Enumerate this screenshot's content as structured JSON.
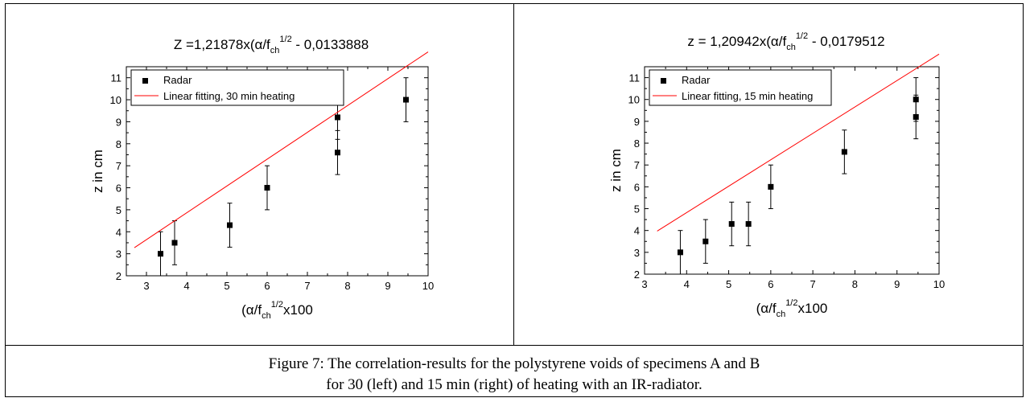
{
  "caption": {
    "line1": "Figure 7: The correlation-results for the polystyrene voids of specimens A and B",
    "line2": "for 30 (left) and 15 min (right) of heating with an IR-radiator."
  },
  "chart_data": [
    {
      "type": "scatter",
      "title_main": "Z =1,21878x(α/f",
      "title_sub": "ch",
      "title_sup": "1/2",
      "title_rest": " - 0,0133888",
      "xlabel_main": "(α/f",
      "xlabel_sub": "ch",
      "xlabel_sup": "1/2",
      "xlabel_rest": "x100",
      "ylabel": "z in cm",
      "xlim": [
        2.5,
        10
      ],
      "ylim": [
        2,
        11.5
      ],
      "xticks": [
        3,
        4,
        5,
        6,
        7,
        8,
        9,
        10
      ],
      "yticks": [
        2,
        3,
        4,
        5,
        6,
        7,
        8,
        9,
        10,
        11
      ],
      "legend_position": "top-left",
      "series": [
        {
          "name": "Radar",
          "marker": "square",
          "color": "#000000",
          "points": [
            {
              "x": 3.35,
              "y": 3.0,
              "err": 1.0
            },
            {
              "x": 3.7,
              "y": 3.5,
              "err": 1.0
            },
            {
              "x": 5.07,
              "y": 4.3,
              "err": 1.0
            },
            {
              "x": 6.0,
              "y": 6.0,
              "err": 1.0
            },
            {
              "x": 7.75,
              "y": 9.2,
              "err": 1.0
            },
            {
              "x": 7.75,
              "y": 7.6,
              "err": 1.0
            },
            {
              "x": 9.45,
              "y": 10.0,
              "err": 1.0
            }
          ]
        },
        {
          "name": "Linear fitting, 30 min heating",
          "line": true,
          "color": "#ff0000",
          "slope": 1.21878,
          "intercept": -0.0133888,
          "x_range": [
            2.7,
            10
          ]
        }
      ]
    },
    {
      "type": "scatter",
      "title_main": "z = 1,20942x(α/f",
      "title_sub": "ch",
      "title_sup": "1/2",
      "title_rest": " - 0,0179512",
      "xlabel_main": "(α/f",
      "xlabel_sub": "ch",
      "xlabel_sup": "1/2",
      "xlabel_rest": "x100",
      "ylabel": "z in cm",
      "xlim": [
        3,
        10
      ],
      "ylim": [
        2,
        11.5
      ],
      "xticks": [
        3,
        4,
        5,
        6,
        7,
        8,
        9,
        10
      ],
      "yticks": [
        2,
        3,
        4,
        5,
        6,
        7,
        8,
        9,
        10,
        11
      ],
      "legend_position": "top-left",
      "series": [
        {
          "name": "Radar",
          "marker": "square",
          "color": "#000000",
          "points": [
            {
              "x": 3.85,
              "y": 3.0,
              "err": 1.0
            },
            {
              "x": 4.45,
              "y": 3.5,
              "err": 1.0
            },
            {
              "x": 5.07,
              "y": 4.3,
              "err": 1.0
            },
            {
              "x": 5.47,
              "y": 4.3,
              "err": 1.0
            },
            {
              "x": 6.0,
              "y": 6.0,
              "err": 1.0
            },
            {
              "x": 7.75,
              "y": 7.6,
              "err": 1.0
            },
            {
              "x": 9.45,
              "y": 10.0,
              "err": 1.0
            },
            {
              "x": 9.45,
              "y": 9.2,
              "err": 1.0
            }
          ]
        },
        {
          "name": "Linear fitting, 15 min heating",
          "line": true,
          "color": "#ff0000",
          "slope": 1.20942,
          "intercept": -0.0179512,
          "x_range": [
            3.3,
            10
          ]
        }
      ]
    }
  ]
}
